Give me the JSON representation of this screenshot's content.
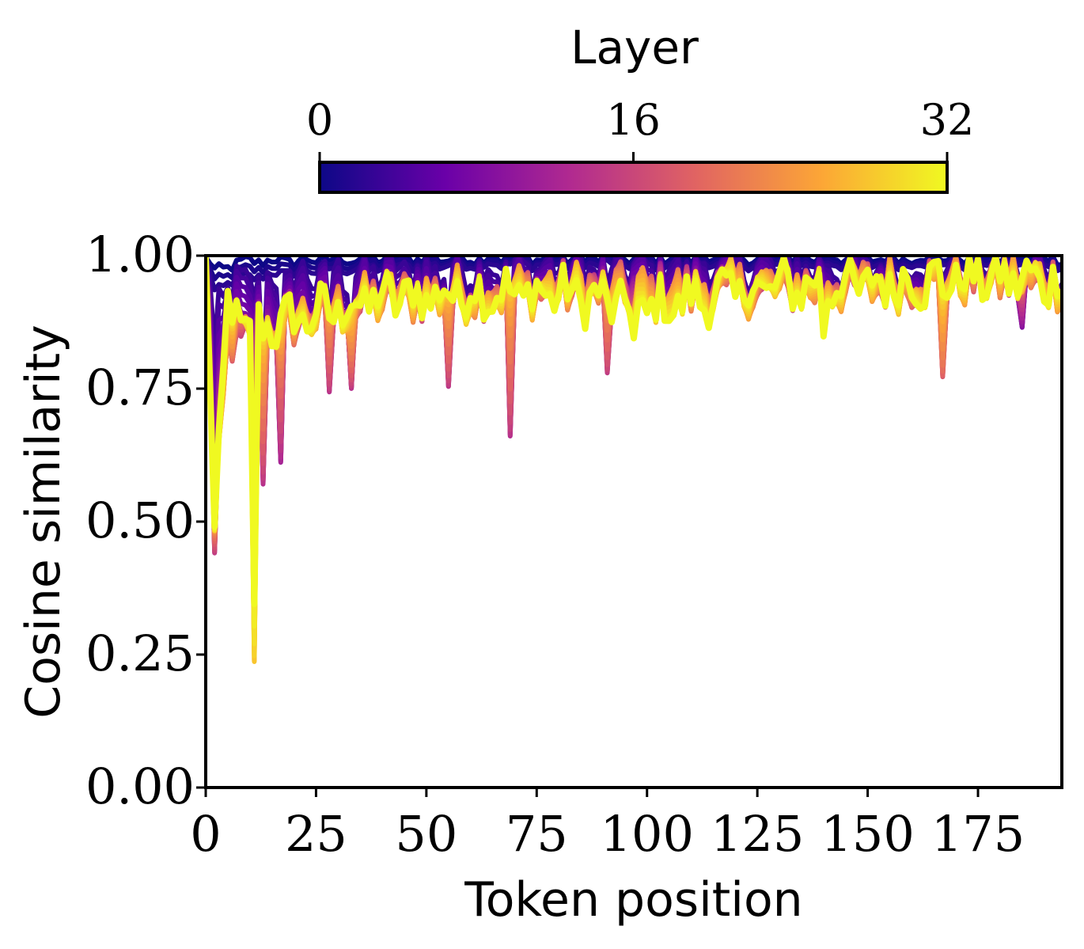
{
  "chart_data": {
    "type": "line",
    "xlabel": "Token position",
    "ylabel": "Cosine similarity",
    "xlim": [
      0,
      194
    ],
    "ylim": [
      0,
      1
    ],
    "xticks": [
      0,
      25,
      50,
      75,
      100,
      125,
      150,
      175
    ],
    "yticks": [
      0.0,
      0.25,
      0.5,
      0.75,
      1.0
    ],
    "xtick_labels": [
      "0",
      "25",
      "50",
      "75",
      "100",
      "125",
      "150",
      "175"
    ],
    "ytick_labels": [
      "0.00",
      "0.25",
      "0.50",
      "0.75",
      "1.00"
    ],
    "grid": false,
    "colorbar": {
      "label": "Layer",
      "orientation": "horizontal",
      "placement": "top",
      "colormap": "plasma",
      "range": [
        0,
        32
      ],
      "ticks": [
        0,
        16,
        32
      ],
      "tick_labels": [
        "0",
        "16",
        "32"
      ],
      "colors": [
        "#0d0887",
        "#6a00a8",
        "#b12a90",
        "#e16462",
        "#fca636",
        "#f0f921"
      ]
    },
    "n_layers": 33,
    "trends": [
      {
        "layer": 0,
        "x": [
          0,
          2,
          5,
          10,
          20,
          40,
          60,
          80,
          100,
          125,
          150,
          175,
          194
        ],
        "y": [
          1.0,
          0.97,
          0.98,
          0.99,
          0.99,
          0.995,
          0.995,
          0.995,
          0.995,
          0.995,
          0.995,
          0.995,
          0.995
        ]
      },
      {
        "layer": 2,
        "x": [
          0,
          2,
          5,
          10,
          20,
          40,
          60,
          80,
          100,
          125,
          150,
          175,
          194
        ],
        "y": [
          1.0,
          0.93,
          0.95,
          0.96,
          0.97,
          0.98,
          0.985,
          0.985,
          0.985,
          0.985,
          0.985,
          0.985,
          0.985
        ]
      },
      {
        "layer": 8,
        "x": [
          0,
          2,
          5,
          10,
          20,
          40,
          60,
          80,
          100,
          125,
          150,
          175,
          194
        ],
        "y": [
          1.0,
          0.72,
          0.88,
          0.88,
          0.9,
          0.92,
          0.93,
          0.94,
          0.94,
          0.94,
          0.945,
          0.96,
          0.95
        ]
      },
      {
        "layer": 16,
        "x": [
          0,
          2,
          5,
          10,
          20,
          40,
          60,
          80,
          100,
          125,
          150,
          175,
          194
        ],
        "y": [
          1.0,
          0.5,
          0.84,
          0.84,
          0.88,
          0.92,
          0.93,
          0.94,
          0.93,
          0.94,
          0.945,
          0.96,
          0.95
        ]
      },
      {
        "layer": 24,
        "x": [
          0,
          2,
          5,
          10,
          20,
          40,
          60,
          80,
          100,
          125,
          150,
          175,
          194
        ],
        "y": [
          1.0,
          0.5,
          0.86,
          0.84,
          0.88,
          0.92,
          0.93,
          0.94,
          0.93,
          0.94,
          0.945,
          0.96,
          0.95
        ]
      },
      {
        "layer": 32,
        "x": [
          0,
          2,
          5,
          10,
          20,
          40,
          60,
          80,
          100,
          125,
          150,
          175,
          194
        ],
        "y": [
          1.0,
          0.5,
          0.9,
          0.86,
          0.88,
          0.92,
          0.93,
          0.93,
          0.9,
          0.94,
          0.945,
          0.96,
          0.95
        ]
      }
    ],
    "dips": [
      {
        "x": 2,
        "y": 0.43,
        "layer": 16
      },
      {
        "x": 11,
        "y": 0.26,
        "layer": 28
      },
      {
        "x": 13,
        "y": 0.59,
        "layer": 12
      },
      {
        "x": 17,
        "y": 0.59,
        "layer": 12
      },
      {
        "x": 28,
        "y": 0.76,
        "layer": 12
      },
      {
        "x": 33,
        "y": 0.75,
        "layer": 12
      },
      {
        "x": 55,
        "y": 0.76,
        "layer": 12
      },
      {
        "x": 69,
        "y": 0.66,
        "layer": 12
      },
      {
        "x": 91,
        "y": 0.78,
        "layer": 14
      },
      {
        "x": 97,
        "y": 0.83,
        "layer": 32
      },
      {
        "x": 140,
        "y": 0.87,
        "layer": 32
      },
      {
        "x": 167,
        "y": 0.8,
        "layer": 18
      },
      {
        "x": 185,
        "y": 0.87,
        "layer": 10
      }
    ]
  }
}
